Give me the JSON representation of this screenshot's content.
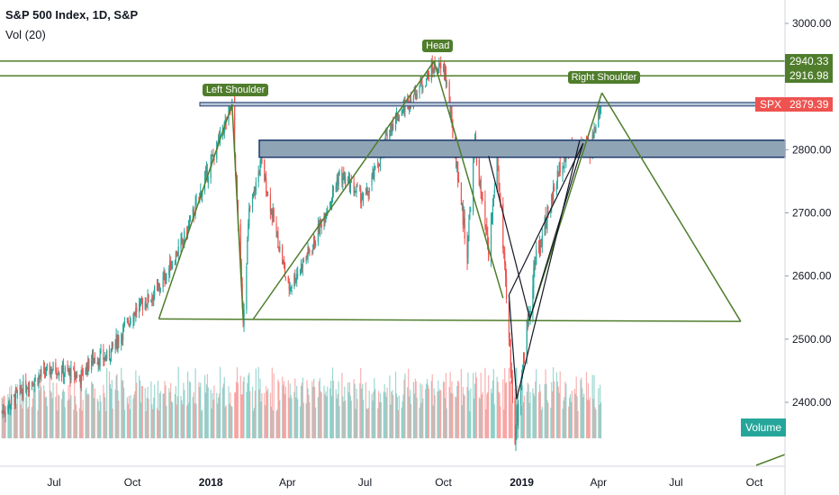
{
  "header": {
    "title": "S&P 500 Index, 1D, S&P",
    "subtitle": "Vol (20)"
  },
  "price_tags": {
    "upper_line": "2940.33",
    "lower_line": "2916.98",
    "spx_symbol": "SPX",
    "spx_value": "2879.39"
  },
  "annotations": {
    "left_shoulder": "Left Shoulder",
    "head": "Head",
    "right_shoulder": "Right Shoulder",
    "volume_tag": "Volume"
  },
  "colors": {
    "up": "#26a69a",
    "down": "#ef5350",
    "pattern_line": "#4f7d2c",
    "zone_fill": "#8fa4b4",
    "zone_border": "#1e3a6e",
    "spx_tag": "#ef5350",
    "axis_text": "#131722"
  },
  "chart_data": {
    "type": "candlestick",
    "title": "S&P 500 Index, 1D, S&P",
    "y_ticks": [
      "2400.00",
      "2500.00",
      "2600.00",
      "2700.00",
      "2800.00",
      "3000.00"
    ],
    "ylim": [
      2310,
      3030
    ],
    "x_ticks": [
      "Jul",
      "Oct",
      "2018",
      "Apr",
      "Jul",
      "Oct",
      "2019",
      "Apr",
      "Jul",
      "Oct"
    ],
    "x_tick_dates": [
      "2017-07-01",
      "2017-10-01",
      "2018-01-01",
      "2018-04-01",
      "2018-07-01",
      "2018-10-01",
      "2019-01-01",
      "2019-04-01",
      "2019-07-01",
      "2019-10-01"
    ],
    "price_path": [
      {
        "date": "2017-05-01",
        "close": 2385
      },
      {
        "date": "2017-06-01",
        "close": 2430
      },
      {
        "date": "2017-07-01",
        "close": 2455
      },
      {
        "date": "2017-08-01",
        "close": 2440
      },
      {
        "date": "2017-08-15",
        "close": 2470
      },
      {
        "date": "2017-09-01",
        "close": 2470
      },
      {
        "date": "2017-10-01",
        "close": 2540
      },
      {
        "date": "2017-11-01",
        "close": 2580
      },
      {
        "date": "2017-12-01",
        "close": 2660
      },
      {
        "date": "2018-01-26",
        "close": 2872
      },
      {
        "date": "2018-02-08",
        "close": 2532
      },
      {
        "date": "2018-02-15",
        "close": 2700
      },
      {
        "date": "2018-03-01",
        "close": 2780
      },
      {
        "date": "2018-04-02",
        "close": 2580
      },
      {
        "date": "2018-05-01",
        "close": 2650
      },
      {
        "date": "2018-06-01",
        "close": 2760
      },
      {
        "date": "2018-07-01",
        "close": 2720
      },
      {
        "date": "2018-08-01",
        "close": 2840
      },
      {
        "date": "2018-09-20",
        "close": 2930
      },
      {
        "date": "2018-10-03",
        "close": 2925
      },
      {
        "date": "2018-10-29",
        "close": 2640
      },
      {
        "date": "2018-11-07",
        "close": 2810
      },
      {
        "date": "2018-11-23",
        "close": 2630
      },
      {
        "date": "2018-12-03",
        "close": 2790
      },
      {
        "date": "2018-12-24",
        "close": 2351
      },
      {
        "date": "2019-01-15",
        "close": 2610
      },
      {
        "date": "2019-02-15",
        "close": 2775
      },
      {
        "date": "2019-03-01",
        "close": 2805
      },
      {
        "date": "2019-03-22",
        "close": 2800
      },
      {
        "date": "2019-04-04",
        "close": 2879
      }
    ],
    "horizontal_lines": [
      2940.33,
      2916.98,
      2872
    ],
    "zones": [
      {
        "from_date": "2018-03-01",
        "to_date": "2019-10-31",
        "low": 2788,
        "high": 2815
      }
    ],
    "pattern": {
      "left_shoulder": {
        "date": "2018-01-26",
        "price": 2872
      },
      "head": {
        "date": "2018-09-20",
        "price": 2940
      },
      "right_shoulder": {
        "date": "2019-04-05",
        "price": 2890
      },
      "neckline": [
        {
          "date": "2017-11-01",
          "price": 2532
        },
        {
          "date": "2019-09-15",
          "price": 2528
        }
      ]
    },
    "volume_series": "Vol (20)"
  }
}
